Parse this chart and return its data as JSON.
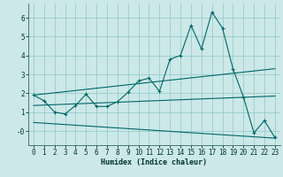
{
  "xlabel": "Humidex (Indice chaleur)",
  "bg_color": "#cce8e8",
  "grid_color": "#99cccc",
  "line_color": "#006666",
  "spine_color": "#336666",
  "xlim": [
    -0.5,
    23.5
  ],
  "ylim": [
    -0.75,
    6.75
  ],
  "x_ticks": [
    0,
    1,
    2,
    3,
    4,
    5,
    6,
    7,
    8,
    9,
    10,
    11,
    12,
    13,
    14,
    15,
    16,
    17,
    18,
    19,
    20,
    21,
    22,
    23
  ],
  "y_ticks": [
    0,
    1,
    2,
    3,
    4,
    5,
    6
  ],
  "y_tick_labels": [
    "-0",
    "1",
    "2",
    "3",
    "4",
    "5",
    "6"
  ],
  "line1_x": [
    0,
    1,
    2,
    3,
    4,
    5,
    6,
    7,
    8,
    9,
    10,
    11,
    12,
    13,
    14,
    15,
    16,
    17,
    18,
    19,
    20,
    21,
    22,
    23
  ],
  "line1_y": [
    1.9,
    1.6,
    1.0,
    0.9,
    1.35,
    1.95,
    1.3,
    1.3,
    1.55,
    2.05,
    2.65,
    2.8,
    2.1,
    3.8,
    4.0,
    5.6,
    4.35,
    6.3,
    5.45,
    3.3,
    1.8,
    -0.1,
    0.55,
    -0.35
  ],
  "line2_x": [
    0,
    23
  ],
  "line2_y": [
    1.9,
    3.3
  ],
  "line3_x": [
    0,
    23
  ],
  "line3_y": [
    1.35,
    1.85
  ],
  "line4_x": [
    0,
    23
  ],
  "line4_y": [
    0.45,
    -0.38
  ]
}
